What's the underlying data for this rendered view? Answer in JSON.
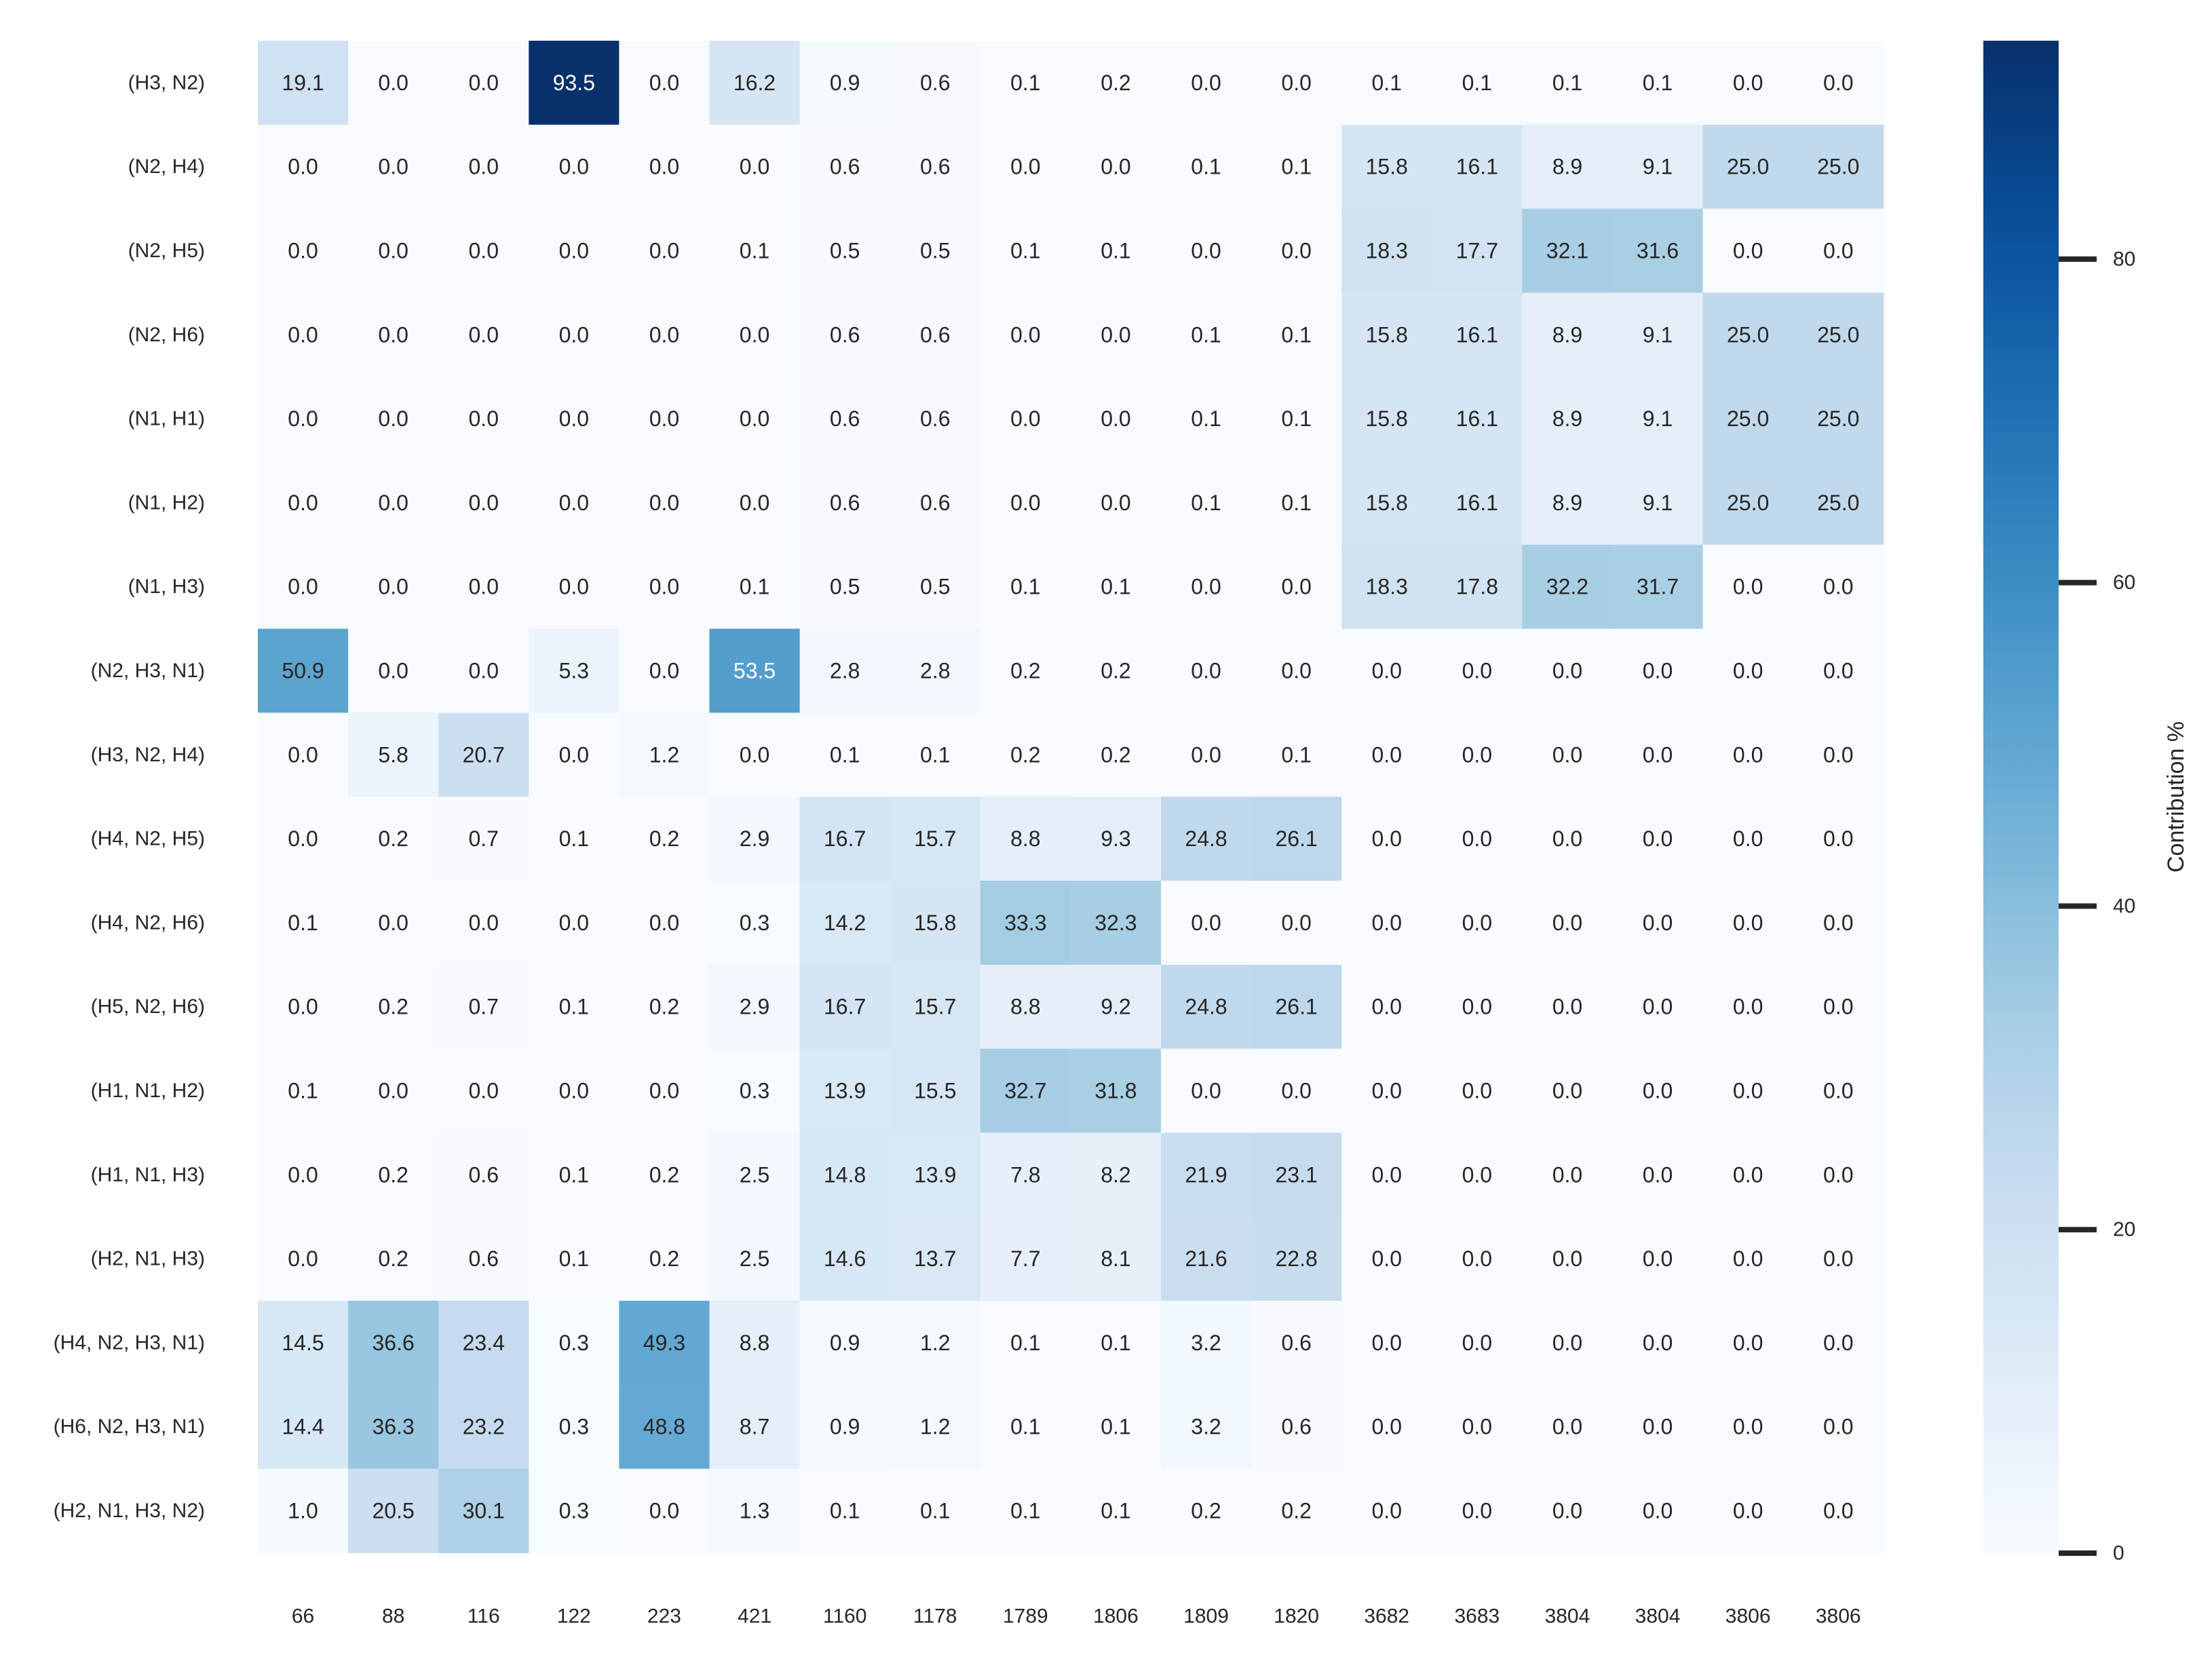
{
  "chart_data": {
    "type": "heatmap",
    "title": "",
    "xlabel": "",
    "ylabel": "",
    "x_categories": [
      "66",
      "88",
      "116",
      "122",
      "223",
      "421",
      "1160",
      "1178",
      "1789",
      "1806",
      "1809",
      "1820",
      "3682",
      "3683",
      "3804",
      "3804",
      "3806",
      "3806"
    ],
    "y_categories": [
      "(H3, N2)",
      "(N2, H4)",
      "(N2, H5)",
      "(N2, H6)",
      "(N1, H1)",
      "(N1, H2)",
      "(N1, H3)",
      "(N2, H3, N1)",
      "(H3, N2, H4)",
      "(H4, N2, H5)",
      "(H4, N2, H6)",
      "(H5, N2, H6)",
      "(H1, N1, H2)",
      "(H1, N1, H3)",
      "(H2, N1, H3)",
      "(H4, N2, H3, N1)",
      "(H6, N2, H3, N1)",
      "(H2, N1, H3, N2)"
    ],
    "values": [
      [
        19.1,
        0.0,
        0.0,
        93.5,
        0.0,
        16.2,
        0.9,
        0.6,
        0.1,
        0.2,
        0.0,
        0.0,
        0.1,
        0.1,
        0.1,
        0.1,
        0.0,
        0.0
      ],
      [
        0.0,
        0.0,
        0.0,
        0.0,
        0.0,
        0.0,
        0.6,
        0.6,
        0.0,
        0.0,
        0.1,
        0.1,
        15.8,
        16.1,
        8.9,
        9.1,
        25.0,
        25.0
      ],
      [
        0.0,
        0.0,
        0.0,
        0.0,
        0.0,
        0.1,
        0.5,
        0.5,
        0.1,
        0.1,
        0.0,
        0.0,
        18.3,
        17.7,
        32.1,
        31.6,
        0.0,
        0.0
      ],
      [
        0.0,
        0.0,
        0.0,
        0.0,
        0.0,
        0.0,
        0.6,
        0.6,
        0.0,
        0.0,
        0.1,
        0.1,
        15.8,
        16.1,
        8.9,
        9.1,
        25.0,
        25.0
      ],
      [
        0.0,
        0.0,
        0.0,
        0.0,
        0.0,
        0.0,
        0.6,
        0.6,
        0.0,
        0.0,
        0.1,
        0.1,
        15.8,
        16.1,
        8.9,
        9.1,
        25.0,
        25.0
      ],
      [
        0.0,
        0.0,
        0.0,
        0.0,
        0.0,
        0.0,
        0.6,
        0.6,
        0.0,
        0.0,
        0.1,
        0.1,
        15.8,
        16.1,
        8.9,
        9.1,
        25.0,
        25.0
      ],
      [
        0.0,
        0.0,
        0.0,
        0.0,
        0.0,
        0.1,
        0.5,
        0.5,
        0.1,
        0.1,
        0.0,
        0.0,
        18.3,
        17.8,
        32.2,
        31.7,
        0.0,
        0.0
      ],
      [
        50.9,
        0.0,
        0.0,
        5.3,
        0.0,
        53.5,
        2.8,
        2.8,
        0.2,
        0.2,
        0.0,
        0.0,
        0.0,
        0.0,
        0.0,
        0.0,
        0.0,
        0.0
      ],
      [
        0.0,
        5.8,
        20.7,
        0.0,
        1.2,
        0.0,
        0.1,
        0.1,
        0.2,
        0.2,
        0.0,
        0.1,
        0.0,
        0.0,
        0.0,
        0.0,
        0.0,
        0.0
      ],
      [
        0.0,
        0.2,
        0.7,
        0.1,
        0.2,
        2.9,
        16.7,
        15.7,
        8.8,
        9.3,
        24.8,
        26.1,
        0.0,
        0.0,
        0.0,
        0.0,
        0.0,
        0.0
      ],
      [
        0.1,
        0.0,
        0.0,
        0.0,
        0.0,
        0.3,
        14.2,
        15.8,
        33.3,
        32.3,
        0.0,
        0.0,
        0.0,
        0.0,
        0.0,
        0.0,
        0.0,
        0.0
      ],
      [
        0.0,
        0.2,
        0.7,
        0.1,
        0.2,
        2.9,
        16.7,
        15.7,
        8.8,
        9.2,
        24.8,
        26.1,
        0.0,
        0.0,
        0.0,
        0.0,
        0.0,
        0.0
      ],
      [
        0.1,
        0.0,
        0.0,
        0.0,
        0.0,
        0.3,
        13.9,
        15.5,
        32.7,
        31.8,
        0.0,
        0.0,
        0.0,
        0.0,
        0.0,
        0.0,
        0.0,
        0.0
      ],
      [
        0.0,
        0.2,
        0.6,
        0.1,
        0.2,
        2.5,
        14.8,
        13.9,
        7.8,
        8.2,
        21.9,
        23.1,
        0.0,
        0.0,
        0.0,
        0.0,
        0.0,
        0.0
      ],
      [
        0.0,
        0.2,
        0.6,
        0.1,
        0.2,
        2.5,
        14.6,
        13.7,
        7.7,
        8.1,
        21.6,
        22.8,
        0.0,
        0.0,
        0.0,
        0.0,
        0.0,
        0.0
      ],
      [
        14.5,
        36.6,
        23.4,
        0.3,
        49.3,
        8.8,
        0.9,
        1.2,
        0.1,
        0.1,
        3.2,
        0.6,
        0.0,
        0.0,
        0.0,
        0.0,
        0.0,
        0.0
      ],
      [
        14.4,
        36.3,
        23.2,
        0.3,
        48.8,
        8.7,
        0.9,
        1.2,
        0.1,
        0.1,
        3.2,
        0.6,
        0.0,
        0.0,
        0.0,
        0.0,
        0.0,
        0.0
      ],
      [
        1.0,
        20.5,
        30.1,
        0.3,
        0.0,
        1.3,
        0.1,
        0.1,
        0.1,
        0.1,
        0.2,
        0.2,
        0.0,
        0.0,
        0.0,
        0.0,
        0.0,
        0.0
      ]
    ],
    "value_range": [
      0,
      93.5
    ],
    "colormap": "Blues",
    "annotated": true,
    "grid": false,
    "colorbar": {
      "label": "Contribution %",
      "ticks": [
        0,
        20,
        40,
        60,
        80
      ],
      "tick_labels": [
        "0",
        "20",
        "40",
        "60",
        "80"
      ],
      "placement": "right"
    }
  }
}
